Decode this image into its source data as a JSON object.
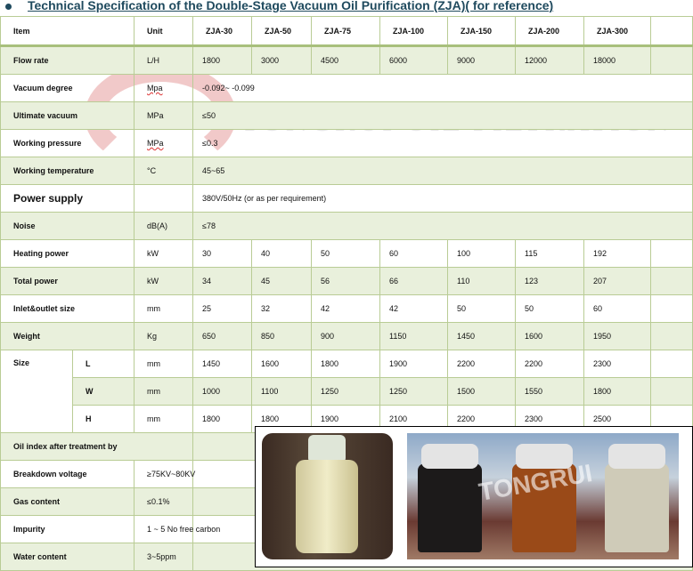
{
  "title": "Technical Specification of the Double-Stage Vacuum Oil Purification (ZJA)( for reference)",
  "header": {
    "item": "Item",
    "unit": "Unit",
    "models": [
      "ZJA-30",
      "ZJA-50",
      "ZJA-75",
      "ZJA-100",
      "ZJA-150",
      "ZJA-200",
      "ZJA-300"
    ]
  },
  "rows": [
    {
      "label": "Flow rate",
      "unit": "L/H",
      "values": [
        "1800",
        "3000",
        "4500",
        "6000",
        "9000",
        "12000",
        "18000"
      ]
    },
    {
      "label": "Vacuum degree",
      "unit": "Mpa",
      "value": "-0.092~ -0.099"
    },
    {
      "label": "Ultimate vacuum",
      "unit": "MPa",
      "value": "≤50"
    },
    {
      "label": "Working pressure",
      "unit": "MPa",
      "value": "≤0.3"
    },
    {
      "label": "Working temperature",
      "unit": "°C",
      "value": "45~65"
    },
    {
      "label": "Power supply",
      "unit": "",
      "value": "380V/50Hz (or as per requirement)"
    },
    {
      "label": "Noise",
      "unit": "dB(A)",
      "value": "≤78"
    },
    {
      "label": "Heating power",
      "unit": "kW",
      "values": [
        "30",
        "40",
        "50",
        "60",
        "100",
        "115",
        "192"
      ]
    },
    {
      "label": "Total power",
      "unit": "kW",
      "values": [
        "34",
        "45",
        "56",
        "66",
        "110",
        "123",
        "207"
      ]
    },
    {
      "label": "Inlet&outlet size",
      "unit": "mm",
      "values": [
        "25",
        "32",
        "42",
        "42",
        "50",
        "50",
        "60"
      ]
    },
    {
      "label": "Weight",
      "unit": "Kg",
      "values": [
        "650",
        "850",
        "900",
        "1150",
        "1450",
        "1600",
        "1950"
      ]
    }
  ],
  "size": {
    "label": "Size",
    "rows": [
      {
        "dim": "L",
        "unit": "mm",
        "values": [
          "1450",
          "1600",
          "1800",
          "1900",
          "2200",
          "2200",
          "2300"
        ]
      },
      {
        "dim": "W",
        "unit": "mm",
        "values": [
          "1000",
          "1100",
          "1250",
          "1250",
          "1500",
          "1550",
          "1800"
        ]
      },
      {
        "dim": "H",
        "unit": "mm",
        "values": [
          "1800",
          "1800",
          "1900",
          "2100",
          "2200",
          "2300",
          "2500"
        ]
      }
    ]
  },
  "oil_index": {
    "label": "Oil index after treatment by",
    "rows": [
      {
        "label": "Breakdown voltage",
        "value": "≥75KV~80KV"
      },
      {
        "label": "Gas content",
        "value": "≤0.1%"
      },
      {
        "label": "Impurity",
        "value": "1 ~ 5 No free carbon"
      },
      {
        "label": "Water content",
        "value": "3~5ppm"
      }
    ]
  },
  "watermark": "TONGRUI OIL FILTRATION",
  "photo_watermark": "TONGRUI",
  "colors": {
    "row_green": "#e9f0dc",
    "border": "#b9cc95",
    "title": "#1f4a5e"
  }
}
